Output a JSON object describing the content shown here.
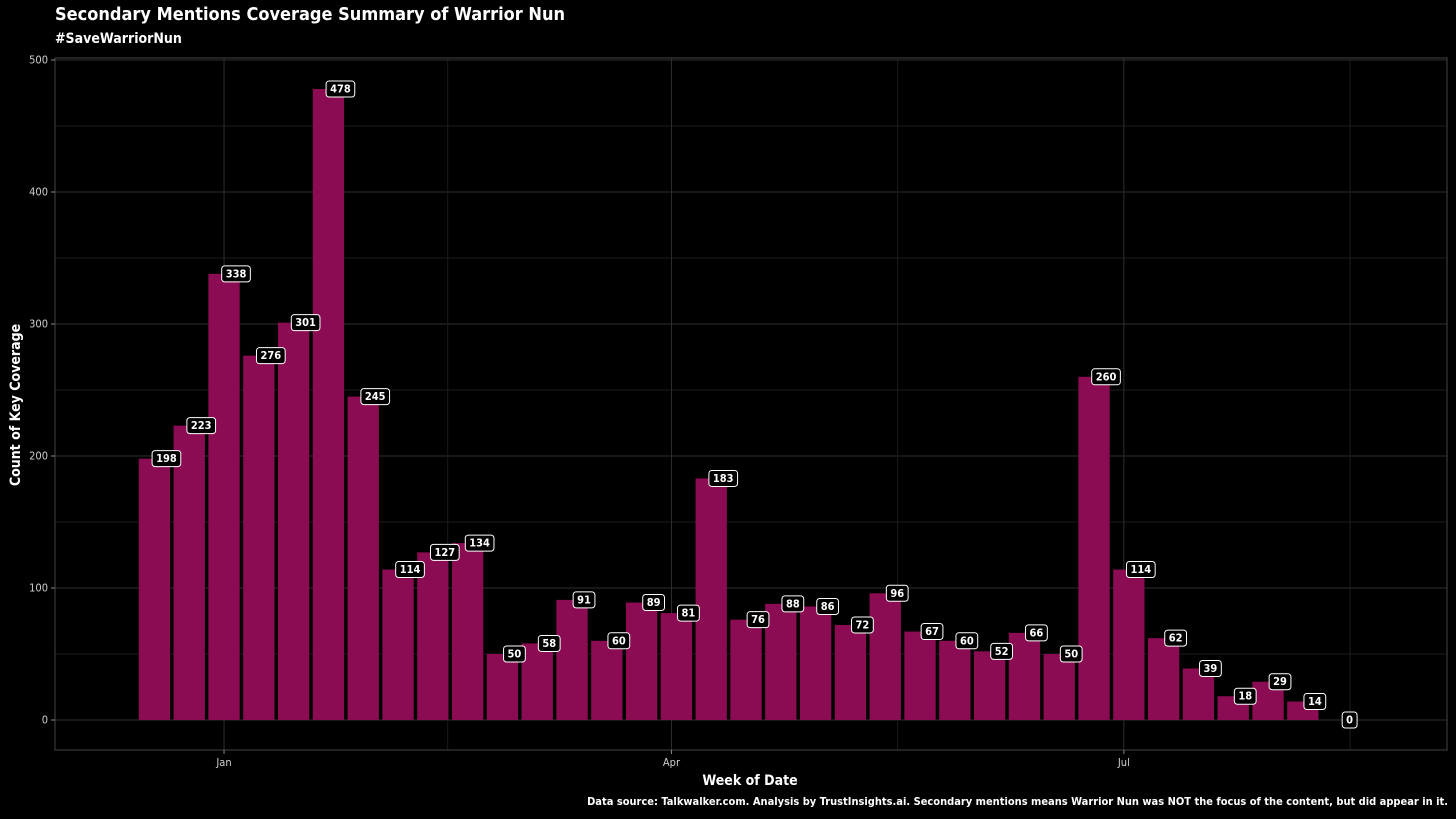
{
  "chart_data": {
    "type": "bar",
    "title": "Secondary Mentions Coverage Summary of Warrior Nun",
    "subtitle": "#SaveWarriorNun",
    "xlabel": "Week of Date",
    "ylabel": "Count of Key Coverage",
    "caption": "Data source: Talkwalker.com. Analysis by TrustInsights.ai. Secondary mentions means Warrior Nun was NOT the focus of the content, but did appear in it.",
    "x": [
      "2022-12-18",
      "2022-12-25",
      "2023-01-01",
      "2023-01-08",
      "2023-01-15",
      "2023-01-22",
      "2023-01-29",
      "2023-02-05",
      "2023-02-12",
      "2023-02-19",
      "2023-02-26",
      "2023-03-05",
      "2023-03-12",
      "2023-03-19",
      "2023-03-26",
      "2023-04-02",
      "2023-04-09",
      "2023-04-16",
      "2023-04-23",
      "2023-04-30",
      "2023-05-07",
      "2023-05-14",
      "2023-05-21",
      "2023-05-28",
      "2023-06-04",
      "2023-06-11",
      "2023-06-18",
      "2023-06-25",
      "2023-07-02",
      "2023-07-09",
      "2023-07-16",
      "2023-07-23",
      "2023-07-30",
      "2023-08-06",
      "2023-08-13"
    ],
    "values": [
      198,
      223,
      338,
      276,
      301,
      478,
      245,
      114,
      127,
      134,
      50,
      58,
      91,
      60,
      89,
      81,
      183,
      76,
      88,
      86,
      72,
      96,
      67,
      60,
      52,
      66,
      50,
      260,
      114,
      62,
      39,
      18,
      29,
      14,
      0
    ],
    "x_ticks": [
      {
        "label": "Jan",
        "value": "2023-01-01"
      },
      {
        "label": "Apr",
        "value": "2023-04-01"
      },
      {
        "label": "Jul",
        "value": "2023-07-01"
      }
    ],
    "y_ticks": [
      0,
      100,
      200,
      300,
      400,
      500
    ],
    "ylim": [
      0,
      500
    ],
    "grid": true,
    "legend": "none",
    "bar_color": "#8b0c52",
    "background": "#000000",
    "text_color": "#ffffff"
  }
}
